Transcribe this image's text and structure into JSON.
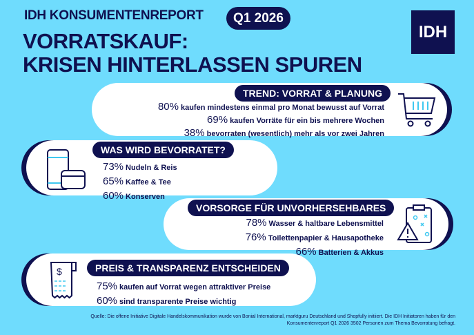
{
  "header": {
    "kicker": "IDH KONSUMENTENREPORT",
    "badge": "Q1 2026",
    "title_line1": "VORRATSKAUF:",
    "title_line2": "KRISEN HINTERLASSEN SPUREN",
    "logo": "IDH"
  },
  "colors": {
    "background": "#6fdcfd",
    "navy": "#0f1150",
    "accent": "#3ec8f0"
  },
  "sections": [
    {
      "title": "TREND: VORRAT & PLANUNG",
      "icon": "shopping-cart-icon",
      "items": [
        {
          "pct": "80%",
          "text": "kaufen mindestens einmal pro Monat bewusst auf Vorrat"
        },
        {
          "pct": "69%",
          "text": "kaufen Vorräte für ein bis mehrere Wochen"
        },
        {
          "pct": "38%",
          "text": "bevorraten (wesentlich) mehr als vor zwei Jahren"
        }
      ]
    },
    {
      "title": "WAS WIRD BEVORRATET?",
      "icon": "cans-icon",
      "items": [
        {
          "pct": "73%",
          "text": "Nudeln & Reis"
        },
        {
          "pct": "65%",
          "text": "Kaffee & Tee"
        },
        {
          "pct": "60%",
          "text": "Konserven"
        }
      ]
    },
    {
      "title": "VORSORGE FÜR UNVORHERSEHBARES",
      "icon": "clipboard-warning-icon",
      "items": [
        {
          "pct": "78%",
          "text": "Wasser & haltbare Lebensmittel"
        },
        {
          "pct": "76%",
          "text": "Toilettenpapier & Hausapotheke"
        },
        {
          "pct": "66%",
          "text": "Batterien & Akkus"
        }
      ]
    },
    {
      "title": "PREIS & TRANSPARENZ ENTSCHEIDEN",
      "icon": "receipt-icon",
      "items": [
        {
          "pct": "75%",
          "text": "kaufen auf Vorrat wegen attraktiver Preise"
        },
        {
          "pct": "60%",
          "text": "sind transparente Preise wichtig"
        }
      ]
    }
  ],
  "footer": {
    "line1": "Quelle: Die offene Initiative Digitale Handelskommunikation wurde von Bonial International, marktguru Deutschland und Shopfully initiiert. Die IDH Initiatoren haben für den",
    "line2": "Konsumentenreport Q1 2026 3502 Personen zum Thema Bevorratung befragt."
  }
}
